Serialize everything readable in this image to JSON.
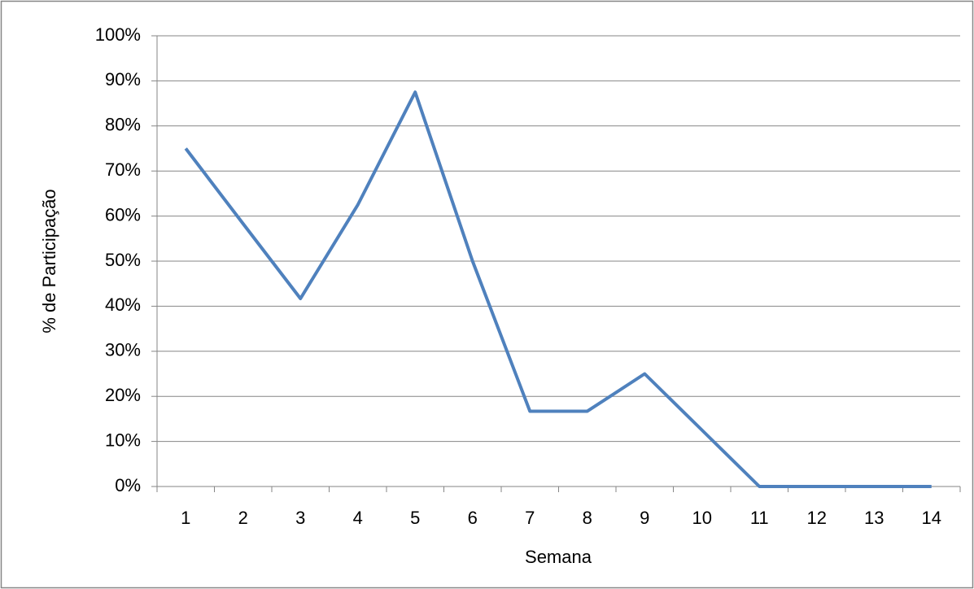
{
  "chart_data": {
    "type": "line",
    "x_label": "Semana",
    "y_label": "% de Participação",
    "categories": [
      "1",
      "2",
      "3",
      "4",
      "5",
      "6",
      "7",
      "8",
      "9",
      "10",
      "11",
      "12",
      "13",
      "14"
    ],
    "series": [
      {
        "name": "Participação",
        "color": "#4f81bd",
        "values": [
          75,
          58.3,
          41.7,
          62.5,
          87.5,
          50,
          16.7,
          16.7,
          25,
          12.5,
          0,
          0,
          0,
          0
        ]
      }
    ],
    "ylim": [
      0,
      100
    ],
    "yticks": [
      {
        "value": 0,
        "label": "0%"
      },
      {
        "value": 10,
        "label": "10%"
      },
      {
        "value": 20,
        "label": "20%"
      },
      {
        "value": 30,
        "label": "30%"
      },
      {
        "value": 40,
        "label": "40%"
      },
      {
        "value": 50,
        "label": "50%"
      },
      {
        "value": 60,
        "label": "60%"
      },
      {
        "value": 70,
        "label": "70%"
      },
      {
        "value": 80,
        "label": "80%"
      },
      {
        "value": 90,
        "label": "90%"
      },
      {
        "value": 100,
        "label": "100%"
      }
    ],
    "grid": true
  }
}
